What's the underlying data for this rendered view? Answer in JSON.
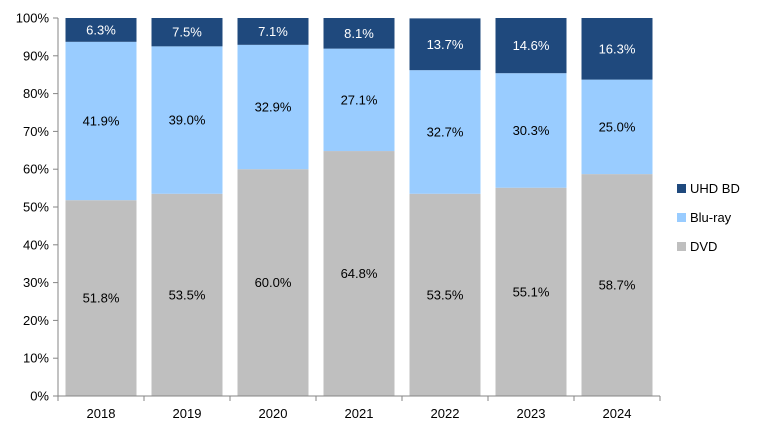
{
  "chart_data": {
    "type": "bar",
    "stacked": true,
    "categories": [
      "2018",
      "2019",
      "2020",
      "2021",
      "2022",
      "2023",
      "2024"
    ],
    "series": [
      {
        "name": "DVD",
        "values": [
          51.8,
          53.5,
          60.0,
          64.8,
          53.5,
          55.1,
          58.7
        ],
        "labels": [
          "51.8%",
          "53.5%",
          "60.0%",
          "64.8%",
          "53.5%",
          "55.1%",
          "58.7%"
        ],
        "color": "#bfbfbf",
        "label_color": "#000000"
      },
      {
        "name": "Blu-ray",
        "values": [
          41.9,
          39.0,
          32.9,
          27.1,
          32.7,
          30.3,
          25.0
        ],
        "labels": [
          "41.9%",
          "39.0%",
          "32.9%",
          "27.1%",
          "32.7%",
          "30.3%",
          "25.0%"
        ],
        "color": "#99ccff",
        "label_color": "#000000"
      },
      {
        "name": "UHD BD",
        "values": [
          6.3,
          7.5,
          7.1,
          8.1,
          13.7,
          14.6,
          16.3
        ],
        "labels": [
          "6.3%",
          "7.5%",
          "7.1%",
          "8.1%",
          "13.7%",
          "14.6%",
          "16.3%"
        ],
        "color": "#1f497d",
        "label_color": "#ffffff"
      }
    ],
    "ylim": [
      0,
      100
    ],
    "yticks": [
      "0%",
      "10%",
      "20%",
      "30%",
      "40%",
      "50%",
      "60%",
      "70%",
      "80%",
      "90%",
      "100%"
    ],
    "legend": {
      "position": "right",
      "order": [
        "UHD BD",
        "Blu-ray",
        "DVD"
      ]
    },
    "grid": false,
    "title": "",
    "xlabel": "",
    "ylabel": ""
  }
}
